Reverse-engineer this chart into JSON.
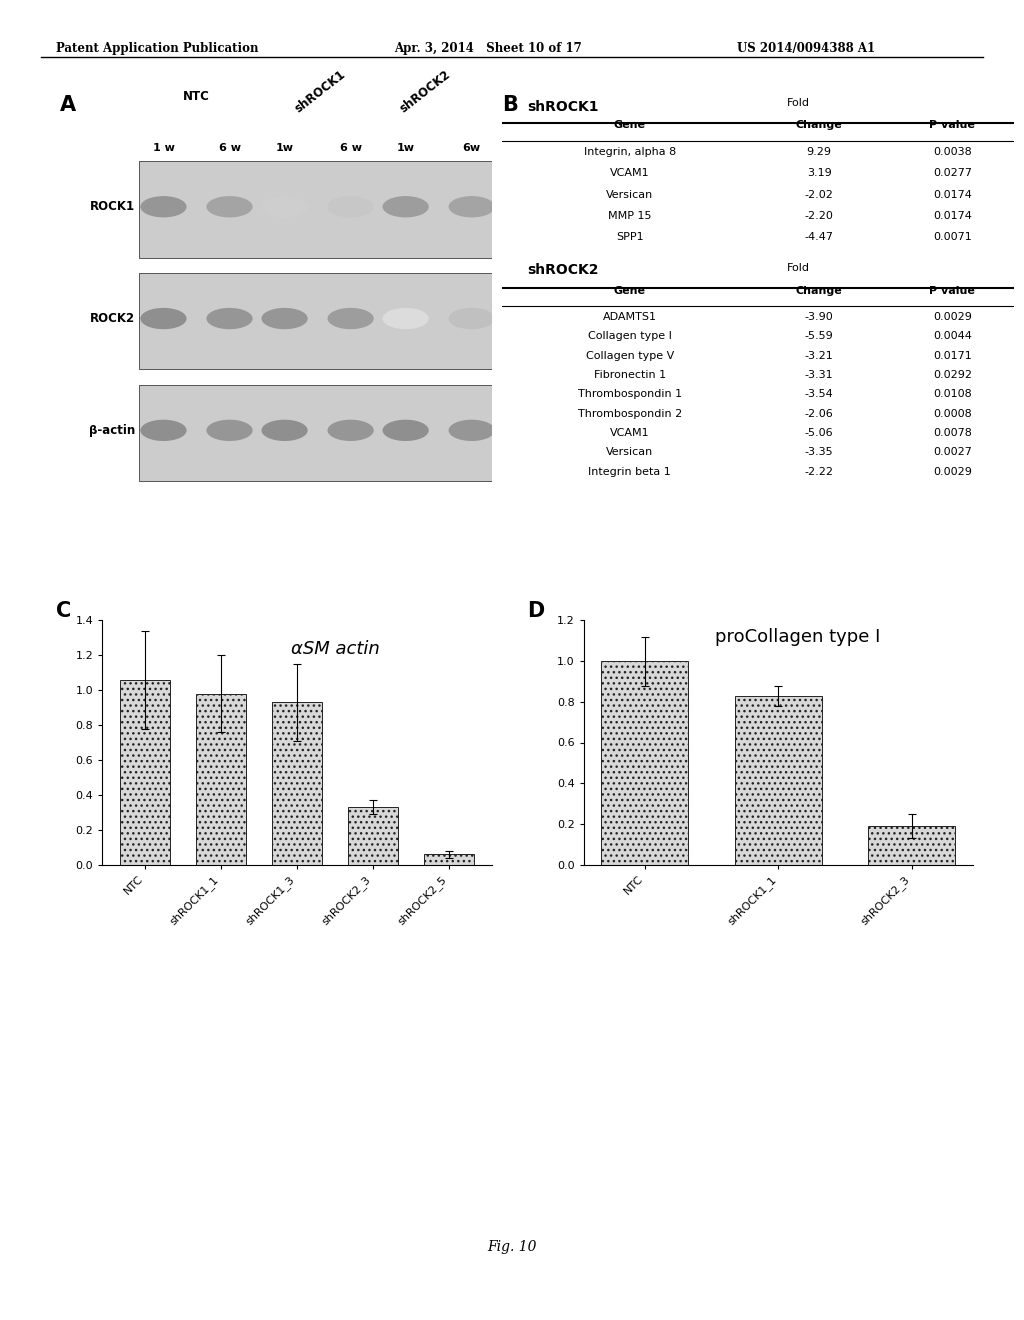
{
  "header_left": "Patent Application Publication",
  "header_mid": "Apr. 3, 2014   Sheet 10 of 17",
  "header_right": "US 2014/0094388 A1",
  "footer": "Fig. 10",
  "panel_A_label": "A",
  "panel_B_label": "B",
  "panel_C_label": "C",
  "panel_D_label": "D",
  "blot_time_header": [
    "1 w",
    "6 w",
    "1w",
    "6 w",
    "1w",
    "6w"
  ],
  "blot_row_labels": [
    "ROCK1",
    "ROCK2",
    "β-actin"
  ],
  "shROCK1_title": "shROCK1",
  "shROCK1_genes": [
    "Integrin, alpha 8",
    "VCAM1",
    "Versican",
    "MMP 15",
    "SPP1"
  ],
  "shROCK1_fold": [
    "9.29",
    "3.19",
    "-2.02",
    "-2.20",
    "-4.47"
  ],
  "shROCK1_pval": [
    "0.0038",
    "0.0277",
    "0.0174",
    "0.0174",
    "0.0071"
  ],
  "shROCK2_title": "shROCK2",
  "shROCK2_genes": [
    "ADAMTS1",
    "Collagen type I",
    "Collagen type V",
    "Fibronectin 1",
    "Thrombospondin 1",
    "Thrombospondin 2",
    "VCAM1",
    "Versican",
    "Integrin beta 1"
  ],
  "shROCK2_fold": [
    "-3.90",
    "-5.59",
    "-3.21",
    "-3.31",
    "-3.54",
    "-2.06",
    "-5.06",
    "-3.35",
    "-2.22"
  ],
  "shROCK2_pval": [
    "0.0029",
    "0.0044",
    "0.0171",
    "0.0292",
    "0.0108",
    "0.0008",
    "0.0078",
    "0.0027",
    "0.0029"
  ],
  "panelC_title": "αSM actin",
  "panelC_values": [
    1.06,
    0.98,
    0.93,
    0.33,
    0.06
  ],
  "panelC_errors": [
    0.28,
    0.22,
    0.22,
    0.04,
    0.02
  ],
  "panelC_ylim": [
    0.0,
    1.4
  ],
  "panelC_yticks": [
    0.0,
    0.2,
    0.4,
    0.6,
    0.8,
    1.0,
    1.2,
    1.4
  ],
  "panelD_title": "proCollagen type I",
  "panelD_values": [
    1.0,
    0.83,
    0.19
  ],
  "panelD_errors": [
    0.12,
    0.05,
    0.06
  ],
  "panelD_ylim": [
    0.0,
    1.2
  ],
  "panelD_yticks": [
    0.0,
    0.2,
    0.4,
    0.6,
    0.8,
    1.0,
    1.2
  ],
  "bar_facecolor": "#d8d8d8",
  "bar_edgecolor": "#222222",
  "background_color": "#ffffff"
}
